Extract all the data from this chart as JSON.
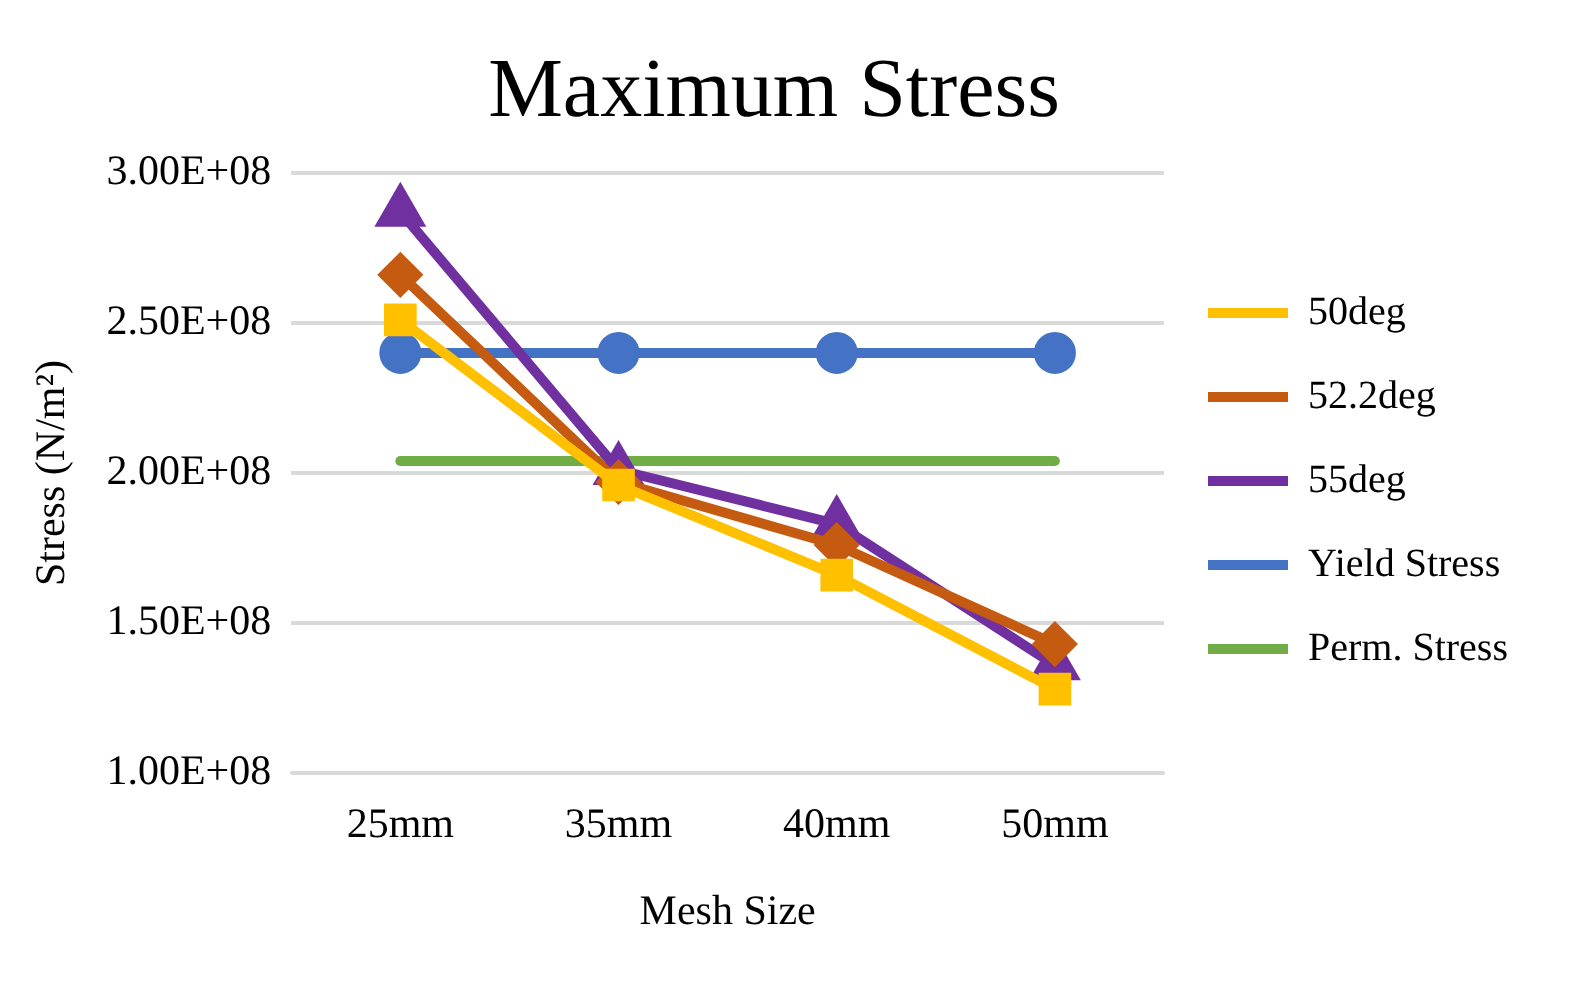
{
  "chart_data": {
    "type": "line",
    "title": "Maximum Stress",
    "xlabel": "Mesh Size",
    "ylabel": "Stress (N/m²)",
    "categories": [
      "25mm",
      "35mm",
      "40mm",
      "50mm"
    ],
    "series": [
      {
        "name": "50deg",
        "color": "#ffc000",
        "marker": "square",
        "values": [
          251000000,
          196000000,
          166000000,
          128000000
        ]
      },
      {
        "name": "52.2deg",
        "color": "#c55a11",
        "marker": "diamond",
        "values": [
          266000000,
          197000000,
          176000000,
          143000000
        ]
      },
      {
        "name": "55deg",
        "color": "#7030a0",
        "marker": "triangle",
        "values": [
          287000000,
          201000000,
          183000000,
          136000000
        ]
      },
      {
        "name": "Yield Stress",
        "color": "#4472c4",
        "marker": "circle",
        "values": [
          240000000,
          240000000,
          240000000,
          240000000
        ]
      },
      {
        "name": "Perm. Stress",
        "color": "#70ad47",
        "marker": "none",
        "values": [
          204000000,
          204000000,
          204000000,
          204000000
        ]
      }
    ],
    "ylim": [
      100000000,
      300000000
    ],
    "yticks": [
      {
        "value": 100000000,
        "label": "1.00E+08"
      },
      {
        "value": 150000000,
        "label": "1.50E+08"
      },
      {
        "value": 200000000,
        "label": "2.00E+08"
      },
      {
        "value": 250000000,
        "label": "2.50E+08"
      },
      {
        "value": 300000000,
        "label": "3.00E+08"
      }
    ],
    "grid": "y",
    "legend": "right",
    "line_style": "solid"
  }
}
